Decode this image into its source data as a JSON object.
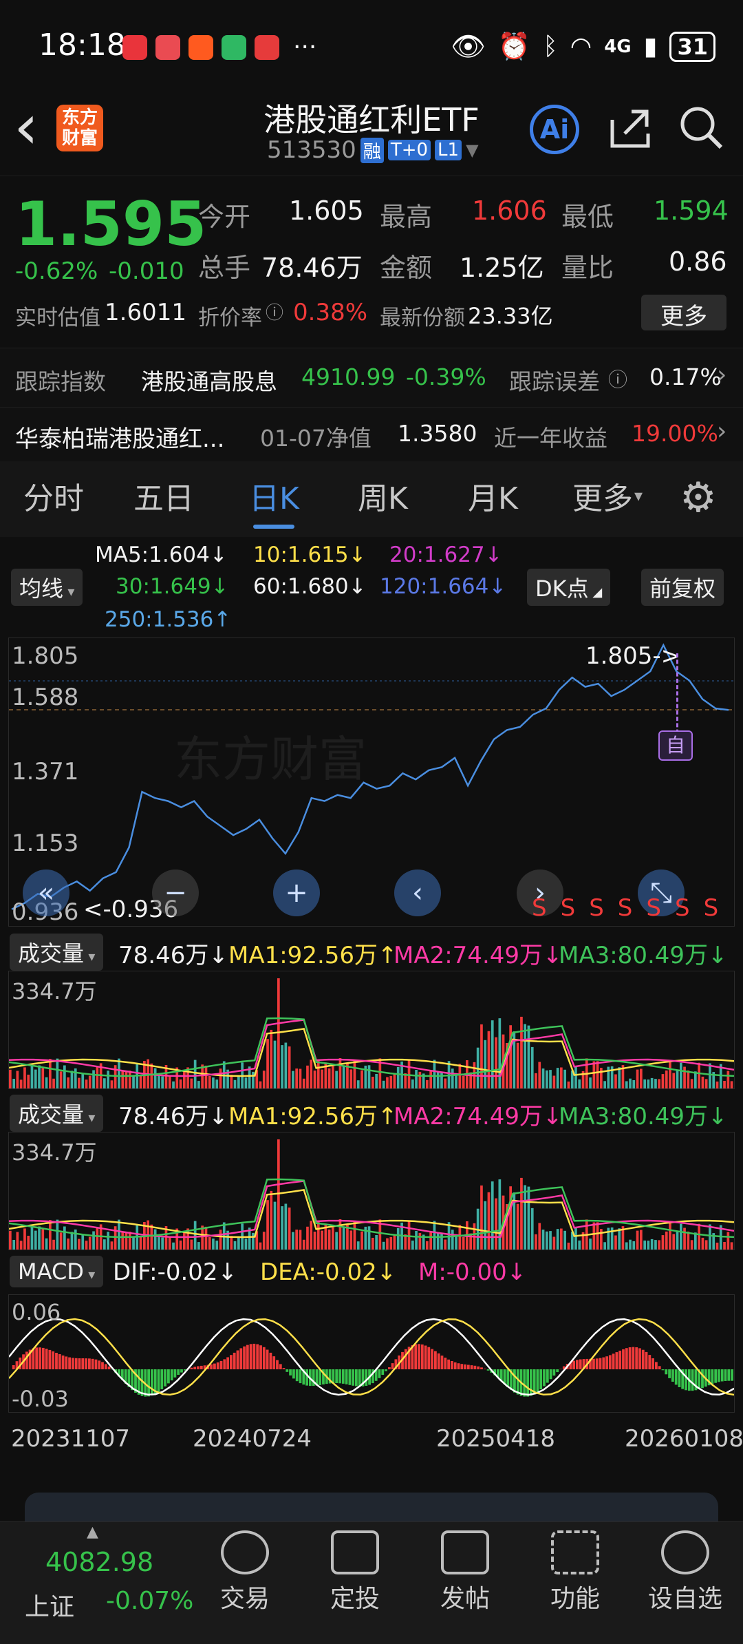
{
  "status_bar": {
    "time": "18:18",
    "dots": "···",
    "network": "4G",
    "battery": "31"
  },
  "header": {
    "back": "‹",
    "logo": "东方财富",
    "title": "港股通红利ETF",
    "code": "513530",
    "tags": [
      "融",
      "T+0",
      "L1"
    ],
    "ai": "Ai"
  },
  "quote": {
    "price": "1.595",
    "change_pct": "-0.62%",
    "change": "-0.010",
    "fields": [
      {
        "label": "今开",
        "value": "1.605",
        "c": "white"
      },
      {
        "label": "最高",
        "value": "1.606",
        "c": "red"
      },
      {
        "label": "最低",
        "value": "1.594",
        "c": "green"
      },
      {
        "label": "总手",
        "value": "78.46万",
        "c": "white"
      },
      {
        "label": "金额",
        "value": "1.25亿",
        "c": "white"
      },
      {
        "label": "量比",
        "value": "0.86",
        "c": "white"
      }
    ],
    "est_label": "实时估值",
    "est_value": "1.6011",
    "premium_label": "折价率",
    "premium_value": "0.38%",
    "shares_label": "最新份额",
    "shares_value": "23.33亿",
    "more": "更多"
  },
  "tracking": {
    "label": "跟踪指数",
    "index": "港股通高股息",
    "index_value": "4910.99",
    "index_pct": "-0.39%",
    "error_label": "跟踪误差",
    "error_value": "0.17%"
  },
  "fund": {
    "name": "华泰柏瑞港股通红...",
    "nav_label": "01-07净值",
    "nav_value": "1.3580",
    "ret_label": "近一年收益",
    "ret_value": "19.00%"
  },
  "tabs": [
    "分时",
    "五日",
    "日K",
    "周K",
    "月K",
    "更多"
  ],
  "active_tab": "日K",
  "ma": {
    "selector": "均线",
    "ma5": "MA5:1.604↓",
    "ma10": "10:1.615↓",
    "ma20": "20:1.627↓",
    "ma30": "30:1.649↓",
    "ma60": "60:1.680↓",
    "ma120": "120:1.664↓",
    "ma250": "250:1.536↑",
    "dk": "DK点",
    "fq": "前复权"
  },
  "chart_data": {
    "type": "line",
    "y_ticks": [
      "1.805",
      "1.588",
      "1.371",
      "1.153",
      "0.936"
    ],
    "ylim": [
      0.936,
      1.805
    ],
    "max_label": "1.805->",
    "min_label": "<-0.936",
    "marker": "自",
    "signals": [
      "S",
      "S",
      "S",
      "S",
      "S",
      "S",
      "S"
    ],
    "values": [
      0.95,
      0.97,
      1.0,
      0.99,
      1.02,
      1.04,
      1.01,
      1.05,
      1.07,
      1.15,
      1.33,
      1.31,
      1.3,
      1.28,
      1.3,
      1.25,
      1.22,
      1.19,
      1.21,
      1.24,
      1.18,
      1.13,
      1.2,
      1.31,
      1.3,
      1.32,
      1.31,
      1.36,
      1.34,
      1.35,
      1.39,
      1.37,
      1.4,
      1.41,
      1.44,
      1.35,
      1.43,
      1.5,
      1.53,
      1.54,
      1.58,
      1.6,
      1.66,
      1.7,
      1.67,
      1.68,
      1.64,
      1.66,
      1.69,
      1.72,
      1.805,
      1.72,
      1.69,
      1.63,
      1.6,
      1.595
    ],
    "volume": {
      "selector": "成交量",
      "vol": "78.46万↓",
      "ma1": "MA1:92.56万↑",
      "ma2": "MA2:74.49万↓",
      "ma3": "MA3:80.49万↓",
      "top": "334.7万"
    },
    "macd": {
      "selector": "MACD",
      "dif": "DIF:-0.02↓",
      "dea": "DEA:-0.02↓",
      "m": "M:-0.00↓",
      "top": "0.06",
      "bottom": "-0.03"
    },
    "x_labels": [
      "20231107",
      "20240724",
      "20250418",
      "20260108"
    ]
  },
  "bottom": {
    "index_value": "4082.98",
    "index_name": "上证",
    "index_pct": "-0.07%",
    "items": [
      "交易",
      "定投",
      "发帖",
      "功能",
      "设自选"
    ]
  },
  "colors": {
    "up": "#f03a3a",
    "down": "#36c24b",
    "line": "#4a8ee0",
    "ma1": "#ffe04a",
    "ma2": "#ff3aa6",
    "ma3": "#3ec35a"
  }
}
